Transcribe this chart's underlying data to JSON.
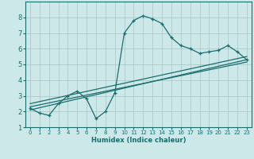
{
  "xlabel": "Humidex (Indice chaleur)",
  "bg_color": "#cce8e8",
  "grid_color": "#b0c8c8",
  "line_color": "#1a6e6e",
  "xlim": [
    -0.5,
    23.5
  ],
  "ylim": [
    1,
    9
  ],
  "xticks": [
    0,
    1,
    2,
    3,
    4,
    5,
    6,
    7,
    8,
    9,
    10,
    11,
    12,
    13,
    14,
    15,
    16,
    17,
    18,
    19,
    20,
    21,
    22,
    23
  ],
  "yticks": [
    1,
    2,
    3,
    4,
    5,
    6,
    7,
    8
  ],
  "series1_x": [
    0,
    1,
    2,
    3,
    4,
    5,
    6,
    7,
    8,
    9,
    10,
    11,
    12,
    13,
    14,
    15,
    16,
    17,
    18,
    19,
    20,
    21,
    22,
    23
  ],
  "series1_y": [
    2.2,
    1.9,
    1.75,
    2.5,
    3.0,
    3.3,
    2.8,
    1.55,
    2.0,
    3.2,
    7.0,
    7.8,
    8.1,
    7.9,
    7.6,
    6.7,
    6.2,
    6.0,
    5.7,
    5.8,
    5.9,
    6.2,
    5.8,
    5.3
  ],
  "trend1_x": [
    0,
    23
  ],
  "trend1_y": [
    2.1,
    5.3
  ],
  "trend2_x": [
    0,
    23
  ],
  "trend2_y": [
    2.3,
    5.15
  ],
  "trend3_x": [
    0,
    23
  ],
  "trend3_y": [
    2.5,
    5.5
  ]
}
